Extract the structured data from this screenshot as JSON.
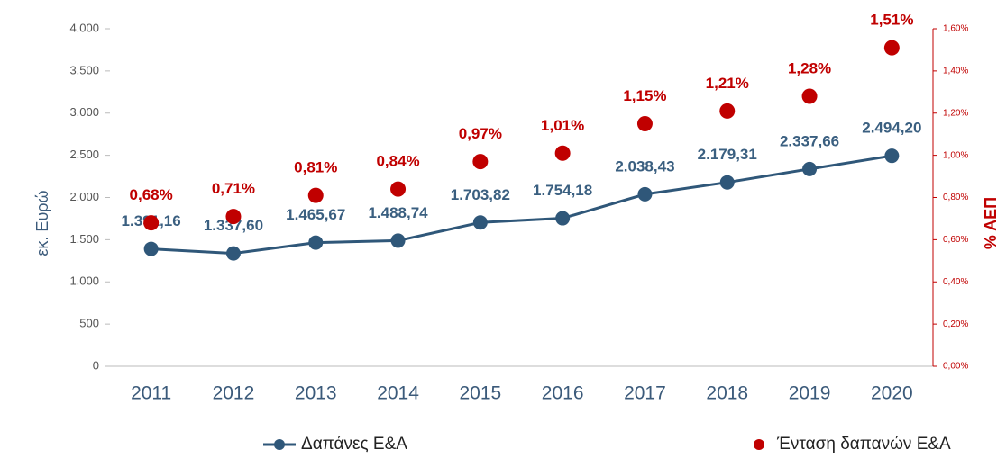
{
  "chart_data": {
    "type": "line",
    "y_label": "εκ. Ευρώ",
    "y2_label": "% ΑΕΠ",
    "categories": [
      "2011",
      "2012",
      "2013",
      "2014",
      "2015",
      "2016",
      "2017",
      "2018",
      "2019",
      "2020"
    ],
    "ylim": [
      0,
      4000
    ],
    "yticks": [
      0,
      500,
      {
        "value": 1000,
        "label": "1.000"
      },
      {
        "value": 1500,
        "label": "1.500"
      },
      {
        "value": 2000,
        "label": "2.000"
      },
      {
        "value": 2500,
        "label": "2.500"
      },
      {
        "value": 3000,
        "label": "3.000"
      },
      {
        "value": 3500,
        "label": "3.500"
      },
      {
        "value": 4000,
        "label": "4.000"
      }
    ],
    "y2lim": [
      0,
      1.6
    ],
    "y2ticks": [
      {
        "value": 0,
        "label": "0,00%"
      },
      {
        "value": 0.2,
        "label": "0,20%"
      },
      {
        "value": 0.4,
        "label": "0,40%"
      },
      {
        "value": 0.6,
        "label": "0,60%"
      },
      {
        "value": 0.8,
        "label": "0,80%"
      },
      {
        "value": 1.0,
        "label": "1,00%"
      },
      {
        "value": 1.2,
        "label": "1,20%"
      },
      {
        "value": 1.4,
        "label": "1,40%"
      },
      {
        "value": 1.6,
        "label": "1,60%"
      }
    ],
    "legend": "bottom",
    "series": [
      {
        "name": "Δαπάνες Ε&Α",
        "color": "#2f5779",
        "style": "line",
        "values": [
          1391.16,
          1337.6,
          1465.67,
          1488.74,
          1703.82,
          1754.18,
          2038.43,
          2179.31,
          2337.66,
          2494.2
        ],
        "value_labels": [
          "1.391,16",
          "1.337,60",
          "1.465,67",
          "1.488,74",
          "1.703,82",
          "1.754,18",
          "2.038,43",
          "2.179,31",
          "2.337,66",
          "2.494,20"
        ]
      },
      {
        "name": "Ένταση δαπανών Ε&Α",
        "color": "#c00000",
        "style": "scatter",
        "axis": "y2",
        "values": [
          0.68,
          0.71,
          0.81,
          0.84,
          0.97,
          1.01,
          1.15,
          1.21,
          1.28,
          1.51
        ],
        "value_labels": [
          "0,68%",
          "0,71%",
          "0,81%",
          "0,84%",
          "0,97%",
          "1,01%",
          "1,15%",
          "1,21%",
          "1,28%",
          "1,51%"
        ]
      }
    ]
  }
}
